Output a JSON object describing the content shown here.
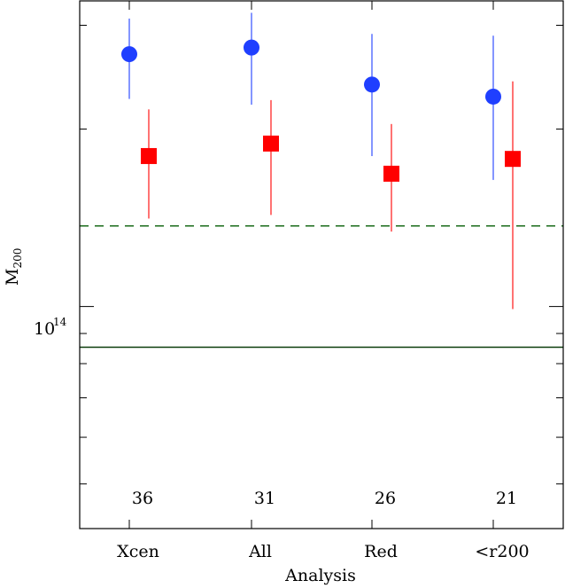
{
  "chart_data": {
    "type": "scatter",
    "xlabel": "Analysis",
    "ylabel": "M",
    "ylabel_subscript": "200",
    "categories": [
      "Xcen",
      "All",
      "Red",
      "<r200"
    ],
    "counts": [
      "36",
      "31",
      "26",
      "21"
    ],
    "yscale": "log",
    "ylim": [
      42000000000000.0,
      330000000000000.0
    ],
    "ytick_label": {
      "base": "10",
      "exponent": "14",
      "value": 100000000000000.0
    },
    "series": [
      {
        "marker": "circle",
        "color": "#1f3fff",
        "values": [
          268000000000000.0,
          275000000000000.0,
          238000000000000.0,
          227000000000000.0
        ],
        "err_low": [
          225000000000000.0,
          220000000000000.0,
          180000000000000.0,
          164000000000000.0
        ],
        "err_high": [
          308000000000000.0,
          315000000000000.0,
          290000000000000.0,
          288000000000000.0
        ]
      },
      {
        "marker": "square",
        "color": "#ff0000",
        "values": [
          180000000000000.0,
          189000000000000.0,
          168000000000000.0,
          178000000000000.0
        ],
        "err_low": [
          141000000000000.0,
          143000000000000.0,
          134000000000000.0,
          99000000000000.0
        ],
        "err_high": [
          216000000000000.0,
          224000000000000.0,
          204000000000000.0,
          241000000000000.0
        ]
      }
    ],
    "reference_lines": [
      {
        "style": "dashed",
        "color": "#1a6b1a",
        "value": 137000000000000.0
      },
      {
        "style": "solid",
        "color": "#0c3d0c",
        "value": 85300000000000.0
      }
    ],
    "grid": false,
    "legend": "none"
  }
}
